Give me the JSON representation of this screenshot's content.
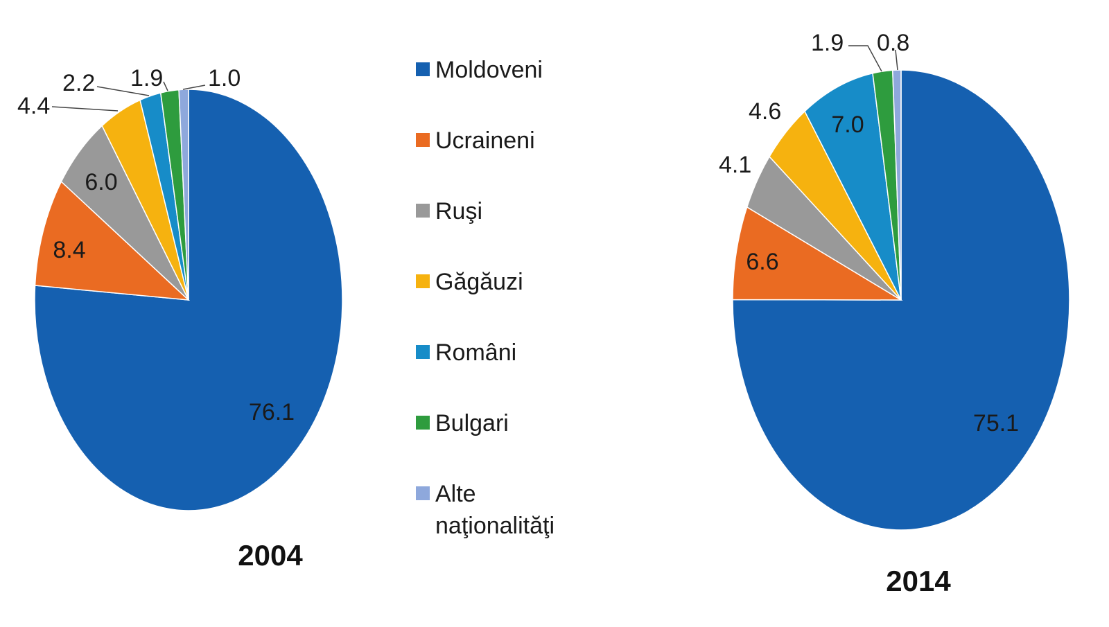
{
  "chart_data": [
    {
      "type": "pie",
      "title": "2004",
      "categories": [
        "Moldoveni",
        "Ucraineni",
        "Ruşi",
        "Găgăuzi",
        "Români",
        "Bulgari",
        "Alte naţionalităţi"
      ],
      "values": [
        76.1,
        8.4,
        6.0,
        4.4,
        2.2,
        1.9,
        1.0
      ],
      "labels": [
        "76.1",
        "8.4",
        "6.0",
        "4.4",
        "2.2",
        "1.9",
        "1.0"
      ],
      "colors": [
        "#1560b0",
        "#ea6b22",
        "#999999",
        "#f6b20f",
        "#178cc8",
        "#2e9c3e",
        "#8ea8dc"
      ],
      "start_angle": "12 o'clock, clockwise",
      "legend_position": "right"
    },
    {
      "type": "pie",
      "title": "2014",
      "categories": [
        "Moldoveni",
        "Ucraineni",
        "Ruşi",
        "Găgăuzi",
        "Români",
        "Bulgari",
        "Alte naţionalităţi"
      ],
      "values": [
        75.1,
        6.6,
        4.1,
        4.6,
        7.0,
        1.9,
        0.8
      ],
      "labels": [
        "75.1",
        "6.6",
        "4.1",
        "4.6",
        "7.0",
        "1.9",
        "0.8"
      ],
      "colors": [
        "#1560b0",
        "#ea6b22",
        "#999999",
        "#f6b20f",
        "#178cc8",
        "#2e9c3e",
        "#8ea8dc"
      ],
      "start_angle": "12 o'clock, clockwise",
      "legend_position": "left"
    }
  ],
  "legend": {
    "items": [
      {
        "label": "Moldoveni",
        "color": "#1560b0"
      },
      {
        "label": "Ucraineni",
        "color": "#ea6b22"
      },
      {
        "label": "Ruşi",
        "color": "#999999"
      },
      {
        "label": "Găgăuzi",
        "color": "#f6b20f"
      },
      {
        "label": "Români",
        "color": "#178cc8"
      },
      {
        "label": "Bulgari",
        "color": "#2e9c3e"
      },
      {
        "label": "Alte naţionalităţi",
        "color": "#8ea8dc"
      }
    ]
  }
}
